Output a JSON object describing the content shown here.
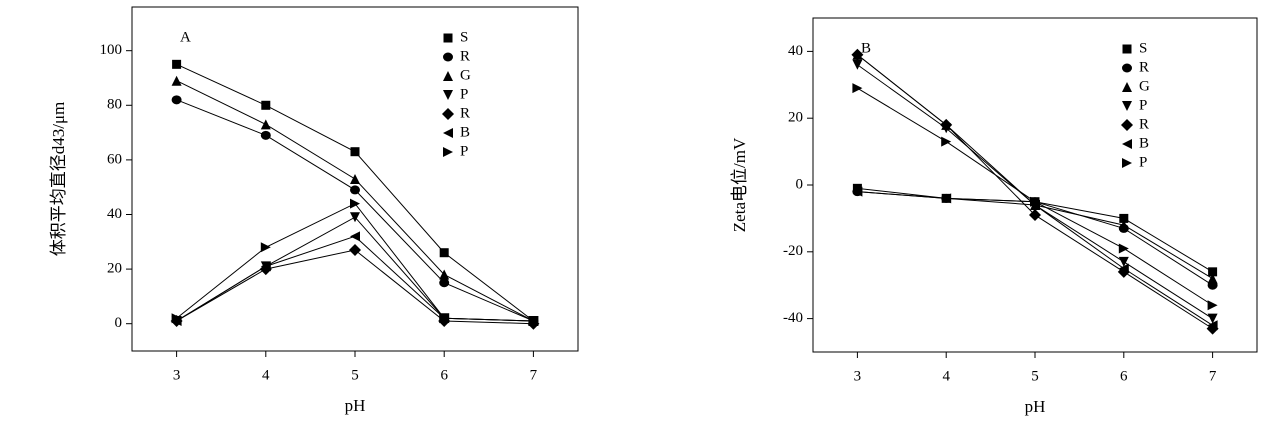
{
  "chart_data": [
    {
      "type": "line",
      "title": "A",
      "x_label": "pH",
      "y_label": "体积平均直径d43/μm",
      "x": [
        3,
        4,
        5,
        6,
        7
      ],
      "xlim": [
        2.5,
        7.5
      ],
      "xticks": [
        3,
        4,
        5,
        6,
        7
      ],
      "ylim": [
        -10,
        116
      ],
      "yticks": [
        0,
        20,
        40,
        60,
        80,
        100
      ],
      "legend": "upper right",
      "series": [
        {
          "name": "S",
          "color": "#000000",
          "marker": "square",
          "values": [
            95,
            80,
            63,
            26,
            1
          ]
        },
        {
          "name": "R",
          "color": "#000000",
          "marker": "circle",
          "values": [
            82,
            69,
            49,
            15,
            1
          ]
        },
        {
          "name": "G",
          "color": "#000000",
          "marker": "triangle-up",
          "values": [
            89,
            73,
            53,
            18,
            1
          ]
        },
        {
          "name": "P",
          "color": "#000000",
          "marker": "triangle-down",
          "values": [
            1,
            21,
            39,
            2,
            1
          ]
        },
        {
          "name": "R",
          "color": "#000000",
          "marker": "diamond",
          "values": [
            1,
            20,
            27,
            1,
            0
          ]
        },
        {
          "name": "B",
          "color": "#000000",
          "marker": "triangle-left",
          "values": [
            1,
            21,
            32,
            2,
            1
          ]
        },
        {
          "name": "P",
          "color": "#000000",
          "marker": "triangle-right",
          "values": [
            2,
            28,
            44,
            2,
            1
          ]
        }
      ]
    },
    {
      "type": "line",
      "title": "B",
      "x_label": "pH",
      "y_label": "Zeta电位/mV",
      "x": [
        3,
        4,
        5,
        6,
        7
      ],
      "xlim": [
        2.5,
        7.5
      ],
      "xticks": [
        3,
        4,
        5,
        6,
        7
      ],
      "ylim": [
        -50,
        50
      ],
      "yticks": [
        -40,
        -20,
        0,
        20,
        40
      ],
      "legend": "upper right",
      "series": [
        {
          "name": "S",
          "color": "#000000",
          "marker": "square",
          "values": [
            -1,
            -4,
            -5,
            -10,
            -26
          ]
        },
        {
          "name": "R",
          "color": "#000000",
          "marker": "circle",
          "values": [
            -2,
            -4,
            -5,
            -13,
            -30
          ]
        },
        {
          "name": "G",
          "color": "#000000",
          "marker": "triangle-up",
          "values": [
            39,
            18,
            -6,
            -12,
            -28
          ]
        },
        {
          "name": "P",
          "color": "#000000",
          "marker": "triangle-down",
          "values": [
            36,
            17,
            -6,
            -23,
            -40
          ]
        },
        {
          "name": "R",
          "color": "#000000",
          "marker": "diamond",
          "values": [
            39,
            18,
            -9,
            -26,
            -43
          ]
        },
        {
          "name": "B",
          "color": "#000000",
          "marker": "triangle-left",
          "values": [
            -2,
            -4,
            -6,
            -25,
            -42
          ]
        },
        {
          "name": "P",
          "color": "#000000",
          "marker": "triangle-right",
          "values": [
            29,
            13,
            -5,
            -19,
            -36
          ]
        }
      ]
    }
  ]
}
